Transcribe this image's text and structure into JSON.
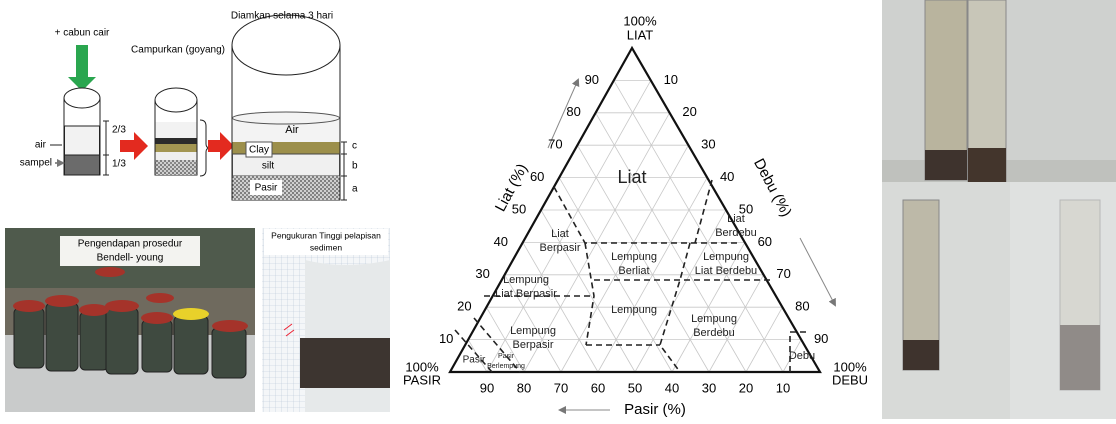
{
  "diagram": {
    "steps": [
      "+ cabun cair",
      "Campurkan (goyang)",
      "Diamkan selama 3 hari"
    ],
    "left_labels": [
      "air",
      "sampel"
    ],
    "fractions": [
      "2/3",
      "1/3"
    ],
    "layers": [
      "Air",
      "Clay",
      "silt",
      "Pasir"
    ],
    "layer_marks": [
      "c",
      "b",
      "a"
    ]
  },
  "photos": [
    {
      "caption": [
        "Pengendapan prosedur",
        "Bendell- young"
      ]
    },
    {
      "caption": [
        "Pengukuran Tinggi pelapisan",
        "sedimen"
      ]
    }
  ],
  "triangle": {
    "vertices": [
      [
        "100%",
        "LIAT"
      ],
      [
        "100%",
        "PASIR"
      ],
      [
        "100%",
        "DEBU"
      ]
    ],
    "axis_titles": [
      "Liat (%)",
      "Debu (%)",
      "Pasir (%)"
    ],
    "liat_ticks": [
      90,
      80,
      70,
      60,
      50,
      40,
      30,
      20,
      10
    ],
    "debu_ticks": [
      10,
      20,
      30,
      40,
      50,
      60,
      70,
      80,
      90
    ],
    "pasir_ticks": [
      90,
      80,
      70,
      60,
      50,
      40,
      30,
      20,
      10
    ],
    "regions": [
      [
        "Liat"
      ],
      [
        "Liat",
        "Berdebu"
      ],
      [
        "Liat",
        "Berpasir"
      ],
      [
        "Lempung",
        "Berliat"
      ],
      [
        "Lempung",
        "Liat Berdebu"
      ],
      [
        "Lempung",
        "Liat Berpasir"
      ],
      [
        "Lempung"
      ],
      [
        "Lempung",
        "Berpasir"
      ],
      [
        "Lempung",
        "Berdebu"
      ],
      [
        "Pasir"
      ],
      [
        "Pasir",
        "Berlempung"
      ],
      [
        "Debu"
      ]
    ]
  }
}
